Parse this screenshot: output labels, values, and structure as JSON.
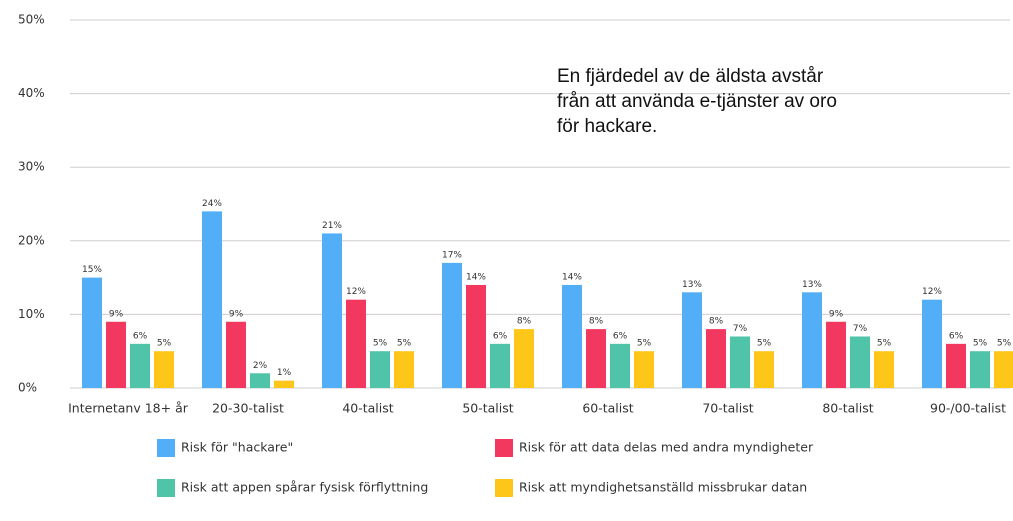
{
  "chart_data": {
    "type": "bar",
    "annotation": "En fjärdedel av de äldsta avstår från att använda e-tjänster av oro för hackare.",
    "categories": [
      "Internetanv 18+ år",
      "20-30-talist",
      "40-talist",
      "50-talist",
      "60-talist",
      "70-talist",
      "80-talist",
      "90-/00-talist"
    ],
    "series": [
      {
        "name": "Risk för \"hackare\"",
        "color": "#52aef7",
        "values": [
          15,
          24,
          21,
          17,
          14,
          13,
          13,
          12
        ],
        "value_labels": [
          "15%",
          "24%",
          "21%",
          "17%",
          "14%",
          "13%",
          "13%",
          "12%"
        ]
      },
      {
        "name": "Risk för att data delas med andra myndigheter",
        "color": "#f2385e",
        "values": [
          9,
          9,
          12,
          14,
          8,
          8,
          9,
          6
        ],
        "value_labels": [
          "9%",
          "9%",
          "12%",
          "14%",
          "8%",
          "8%",
          "9%",
          "6%"
        ]
      },
      {
        "name": "Risk att appen spårar fysisk förflyttning",
        "color": "#4fc4a8",
        "values": [
          6,
          2,
          5,
          6,
          6,
          7,
          7,
          5
        ],
        "value_labels": [
          "6%",
          "2%",
          "5%",
          "6%",
          "6%",
          "7%",
          "7%",
          "5%"
        ]
      },
      {
        "name": "Risk att myndighetsanställd missbrukar datan",
        "color": "#ffc61a",
        "values": [
          5,
          1,
          5,
          8,
          5,
          5,
          5,
          5
        ],
        "value_labels": [
          "5%",
          "1%",
          "5%",
          "8%",
          "5%",
          "5%",
          "5%",
          "5%"
        ]
      }
    ],
    "ylim": [
      0,
      50
    ],
    "yticks": [
      {
        "value": 0,
        "label": "0%"
      },
      {
        "value": 10,
        "label": "10%"
      },
      {
        "value": 20,
        "label": "20%"
      },
      {
        "value": 30,
        "label": "30%"
      },
      {
        "value": 40,
        "label": "40%"
      },
      {
        "value": 50,
        "label": "50%"
      }
    ],
    "grid": true,
    "legend": "bottom"
  }
}
